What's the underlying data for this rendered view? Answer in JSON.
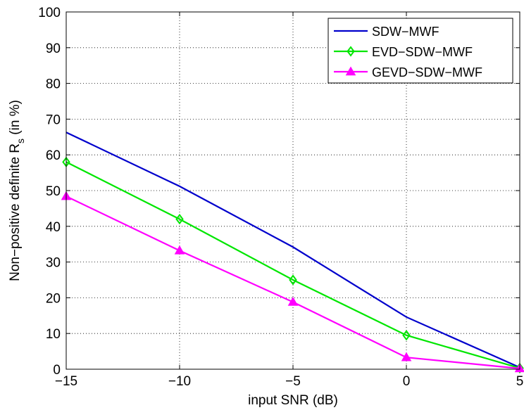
{
  "chart_data": {
    "type": "line",
    "title": "",
    "xlabel": "input SNR (dB)",
    "ylabel": "Non−positive definite R",
    "ylabel_sub": "s",
    "ylabel_suffix": " (in %)",
    "x": [
      -15,
      -10,
      -5,
      0,
      5
    ],
    "xlim": [
      -15,
      5
    ],
    "ylim": [
      0,
      100
    ],
    "x_ticks": [
      -15,
      -10,
      -5,
      0,
      5
    ],
    "x_tick_labels": [
      "−15",
      "−10",
      "−5",
      "0",
      "5"
    ],
    "y_ticks": [
      0,
      10,
      20,
      30,
      40,
      50,
      60,
      70,
      80,
      90,
      100
    ],
    "y_tick_labels": [
      "0",
      "10",
      "20",
      "30",
      "40",
      "50",
      "60",
      "70",
      "80",
      "90",
      "100"
    ],
    "grid": true,
    "legend_position": "top-right",
    "series": [
      {
        "name": "SDW−MWF",
        "values": [
          66.3,
          51.2,
          34.2,
          14.6,
          0.5
        ],
        "color": "#0000cc",
        "marker": "none"
      },
      {
        "name": "EVD−SDW−MWF",
        "values": [
          58.0,
          42.0,
          25.0,
          9.5,
          0.3
        ],
        "color": "#00e600",
        "marker": "diamond"
      },
      {
        "name": "GEVD−SDW−MWF",
        "values": [
          48.4,
          33.2,
          18.8,
          3.3,
          0.2
        ],
        "color": "#ff00ff",
        "marker": "triangle"
      }
    ]
  }
}
